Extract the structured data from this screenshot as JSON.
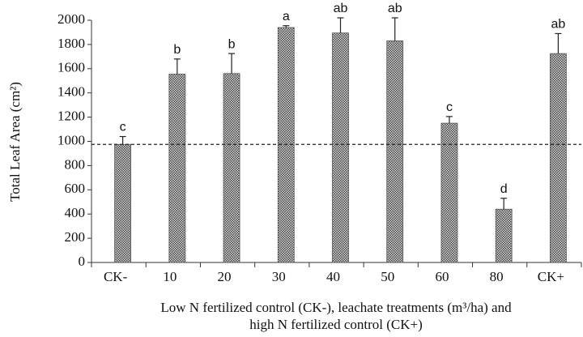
{
  "chart_data": {
    "type": "bar",
    "ylabel": "Total Leaf Area (cm²)",
    "xlabel": [
      "Low N fertilized control (CK-), leachate treatments (m³/ha) and",
      "high N fertilized control (CK+)"
    ],
    "categories": [
      "CK-",
      "10",
      "20",
      "30",
      "40",
      "50",
      "60",
      "80",
      "CK+"
    ],
    "values": [
      975,
      1555,
      1560,
      1940,
      1895,
      1830,
      1150,
      440,
      1725
    ],
    "errors": [
      65,
      125,
      165,
      15,
      125,
      190,
      55,
      90,
      165
    ],
    "annotations": [
      "c",
      "b",
      "b",
      "a",
      "ab",
      "ab",
      "c",
      "d",
      "ab"
    ],
    "reference_line": 975,
    "color": "#555555",
    "ylim": [
      0,
      2000
    ],
    "yticks": [
      0,
      200,
      400,
      600,
      800,
      1000,
      1200,
      1400,
      1600,
      1800,
      2000
    ],
    "grid": false
  }
}
